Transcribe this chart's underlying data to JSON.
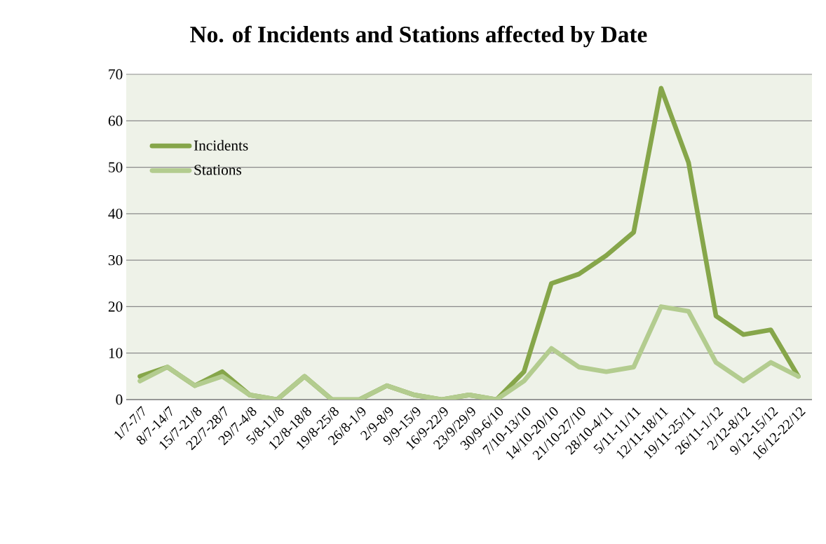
{
  "chart_data": {
    "type": "line",
    "title": "No. of Incidents and Stations affected by Date",
    "categories": [
      "1/7-7/7",
      "8/7-14/7",
      "15/7-21/8",
      "22/7-28/7",
      "29/7-4/8",
      "5/8-11/8",
      "12/8-18/8",
      "19/8-25/8",
      "26/8-1/9",
      "2/9-8/9",
      "9/9-15/9",
      "16/9-22/9",
      "23/9/29/9",
      "30/9-6/10",
      "7/10-13/10",
      "14/10-20/10",
      "21/10-27/10",
      "28/10-4/11",
      "5/11-11/11",
      "12/11-18/11",
      "19/11-25/11",
      "26/11-1/12",
      "2/12-8/12",
      "9/12-15/12",
      "16/12-22/12"
    ],
    "series": [
      {
        "name": "Incidents",
        "color": "#86a64a",
        "values": [
          5,
          7,
          3,
          6,
          1,
          0,
          5,
          0,
          0,
          3,
          1,
          0,
          1,
          0,
          6,
          25,
          27,
          31,
          36,
          67,
          51,
          18,
          14,
          15,
          5
        ]
      },
      {
        "name": "Stations",
        "color": "#b3cc8f",
        "values": [
          4,
          7,
          3,
          5,
          1,
          0,
          5,
          0,
          0,
          3,
          1,
          0,
          1,
          0,
          4,
          11,
          7,
          6,
          7,
          20,
          19,
          8,
          4,
          8,
          5
        ]
      }
    ],
    "ylim": [
      0,
      70
    ],
    "yticks": [
      0,
      10,
      20,
      30,
      40,
      50,
      60,
      70
    ],
    "grid": "y",
    "legend": "top left",
    "marker": "none",
    "line_style": "solid"
  }
}
